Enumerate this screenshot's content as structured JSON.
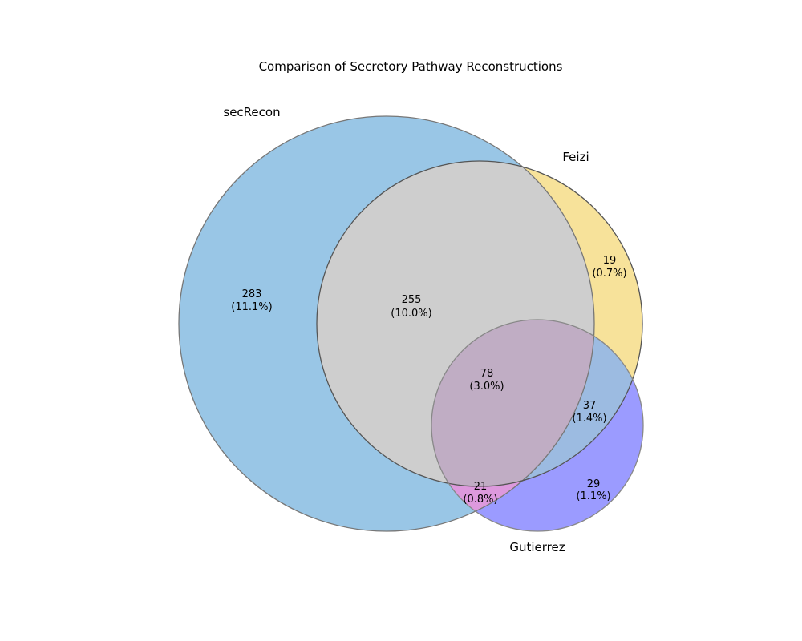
{
  "title": "Comparison of Secretory Pathway Reconstructions",
  "sets": [
    {
      "name": "secRecon",
      "color": "#99c6e6"
    },
    {
      "name": "Feizi",
      "color": "#f7e29a"
    },
    {
      "name": "Gutierrez",
      "color": "#9b9bff"
    }
  ],
  "regions": [
    {
      "id": "secRecon_only",
      "count": "283",
      "percent": "(11.1%)"
    },
    {
      "id": "secRecon_Feizi",
      "count": "255",
      "percent": "(10.0%)"
    },
    {
      "id": "Feizi_only",
      "count": "19",
      "percent": "(0.7%)"
    },
    {
      "id": "all_three",
      "count": "78",
      "percent": "(3.0%)"
    },
    {
      "id": "Feizi_Gutierrez",
      "count": "37",
      "percent": "(1.4%)"
    },
    {
      "id": "secRecon_Gutierrez",
      "count": "21",
      "percent": "(0.8%)"
    },
    {
      "id": "Gutierrez_only",
      "count": "29",
      "percent": "(1.1%)"
    }
  ],
  "region_colors": {
    "secRecon_Feizi": "#cecece",
    "all_three": "#c0adc4",
    "Feizi_Gutierrez": "#9cbbe1",
    "secRecon_Gutierrez": "#dd99dd"
  }
}
